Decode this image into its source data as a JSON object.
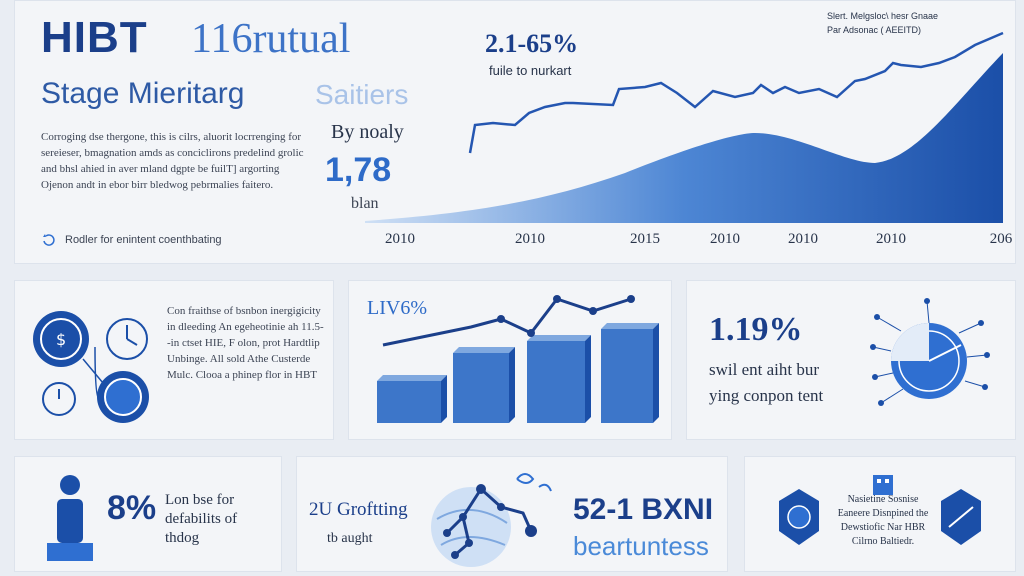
{
  "hero": {
    "brand": "HIBT",
    "brand_sub": "116rutual",
    "stage": "Stage Mieritarg",
    "stage_suffix": "Saitiers",
    "body": "Corroging dse thergone, this is cilrs, aluorit locrrenging for sereieser, bmagnation amds as conciclirons predelind grolic and bhsl ahied in aver mland dgpte be fuilT] argorting Ojenon andt in ebor birr bledwog pebrmalies faitero.",
    "footer": "Rodler for enintent coenthbating",
    "by_label": "By noaly",
    "big_number": "1,78",
    "big_caption": "blan",
    "stat": "2.1-65%",
    "stat_sub": "fuile to nurkart",
    "legend_line1": "Slert. Melgsloc\\ hesr Gnaae",
    "legend_line2": "Par Adsonac ( AEEITD)",
    "years": [
      "2010",
      "2010",
      "2015",
      "2010",
      "2010",
      "2010",
      "206"
    ]
  },
  "card1": {
    "text": "Con fraithse of bsnbon inergigicity in dleeding An egeheotinie ah 11.5--in ctset HIE, F olon, prot Hardtlip Unbinge. All sold Athe Custerde Mulc. Clooa a phinep flor in HBT"
  },
  "card2": {
    "pct": "LIV6%"
  },
  "card3": {
    "pct": "1.19%",
    "sub1": "swil ent aiht bur",
    "sub2": "ying conpon tent"
  },
  "card4": {
    "pct": "8%",
    "text1": "Lon bse for",
    "text2": "defabilits of",
    "text3": "thdog"
  },
  "card5": {
    "title": "2U Groftting",
    "sub": "tb aught",
    "number": "52-1 BXNI",
    "word": "beartuntess"
  },
  "card6": {
    "text": "Nasietine Sosnise Eaneere Disnpined the Dewstiofic Nar HBR Cilrno Baltiedr."
  },
  "colors": {
    "navy": "#1b3f8a",
    "accent": "#2f6fd1",
    "light": "#a9c3e8"
  }
}
